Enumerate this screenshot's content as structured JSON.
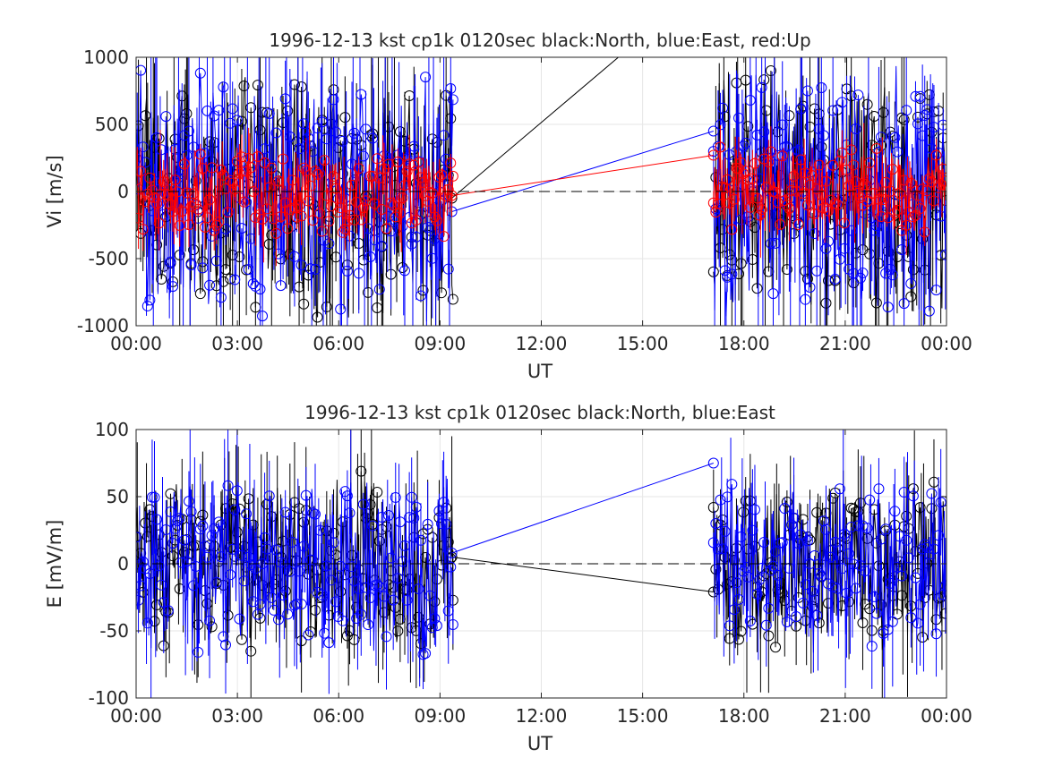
{
  "chart_data": [
    {
      "type": "line",
      "title": "1996-12-13 kst cp1k 0120sec black:North, blue:East, red:Up",
      "xlabel": "UT",
      "ylabel": "Vi [m/s]",
      "xlim": [
        0,
        24
      ],
      "ylim": [
        -1000,
        1000
      ],
      "xticks": [
        "00:00",
        "03:00",
        "06:00",
        "09:00",
        "12:00",
        "15:00",
        "18:00",
        "21:00",
        "00:00"
      ],
      "yticks": [
        "-1000",
        "-500",
        "0",
        "500",
        "1000"
      ],
      "ytick_values": [
        -1000,
        -500,
        0,
        500,
        1000
      ],
      "grid": true,
      "zero_line": true,
      "marker": "circle",
      "error_bars": true,
      "colors": {
        "North": "#000000",
        "East": "#0000ff",
        "Up": "#ff0000"
      },
      "series": [
        {
          "key": "North",
          "color": "#000000",
          "noise_amplitude": 1000,
          "gap_bridge": [
            [
              9.35,
              -50
            ],
            [
              17.1,
              1600
            ]
          ]
        },
        {
          "key": "East",
          "color": "#0000ff",
          "noise_amplitude": 1000,
          "gap_bridge": [
            [
              9.35,
              -150
            ],
            [
              17.1,
              450
            ]
          ]
        },
        {
          "key": "Up",
          "color": "#ff0000",
          "noise_amplitude": 350,
          "gap_bridge": [
            [
              9.35,
              -30
            ],
            [
              17.1,
              270
            ]
          ]
        }
      ],
      "data_windows": [
        [
          0.0,
          9.4
        ],
        [
          17.1,
          24.0
        ]
      ]
    },
    {
      "type": "line",
      "title": "1996-12-13 kst cp1k 0120sec black:North, blue:East",
      "xlabel": "UT",
      "ylabel": "E [mV/m]",
      "xlim": [
        0,
        24
      ],
      "ylim": [
        -100,
        100
      ],
      "xticks": [
        "00:00",
        "03:00",
        "06:00",
        "09:00",
        "12:00",
        "15:00",
        "18:00",
        "21:00",
        "00:00"
      ],
      "yticks": [
        "-100",
        "-50",
        "0",
        "50",
        "100"
      ],
      "ytick_values": [
        -100,
        -50,
        0,
        50,
        100
      ],
      "grid": true,
      "zero_line": true,
      "marker": "circle",
      "error_bars": true,
      "colors": {
        "North": "#000000",
        "East": "#0000ff"
      },
      "series": [
        {
          "key": "North",
          "color": "#000000",
          "noise_amplitude": 70,
          "gap_bridge": [
            [
              9.35,
              5
            ],
            [
              17.1,
              -21
            ]
          ]
        },
        {
          "key": "East",
          "color": "#0000ff",
          "noise_amplitude": 70,
          "gap_bridge": [
            [
              9.35,
              8
            ],
            [
              17.1,
              75
            ]
          ]
        }
      ],
      "data_windows": [
        [
          0.0,
          9.4
        ],
        [
          17.1,
          24.0
        ]
      ]
    }
  ]
}
